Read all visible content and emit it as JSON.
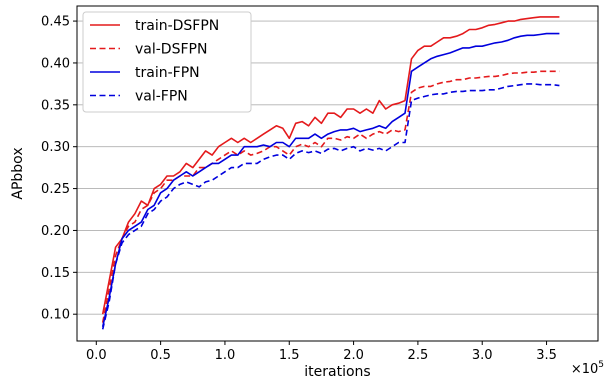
{
  "chart_data": {
    "type": "line",
    "xlabel": "iterations",
    "ylabel": "APbbox",
    "x_multiplier_label": "×10",
    "x_multiplier_exponent": "5",
    "xlim": [
      -0.15,
      3.9
    ],
    "ylim": [
      0.068,
      0.468
    ],
    "x_ticks": [
      0.0,
      0.5,
      1.0,
      1.5,
      2.0,
      2.5,
      3.0,
      3.5
    ],
    "x_tick_labels": [
      "0.0",
      "0.5",
      "1.0",
      "1.5",
      "2.0",
      "2.5",
      "3.0",
      "3.5"
    ],
    "y_ticks": [
      0.1,
      0.15,
      0.2,
      0.25,
      0.3,
      0.35,
      0.4,
      0.45
    ],
    "y_tick_labels": [
      "0.10",
      "0.15",
      "0.20",
      "0.25",
      "0.30",
      "0.35",
      "0.40",
      "0.45"
    ],
    "grid": "horizontal",
    "legend_position": "top-left",
    "series": [
      {
        "name": "train-DSFPN",
        "color": "#e41a1c",
        "dash": "solid",
        "points": [
          [
            0.05,
            0.1
          ],
          [
            0.1,
            0.14
          ],
          [
            0.15,
            0.18
          ],
          [
            0.2,
            0.19
          ],
          [
            0.25,
            0.21
          ],
          [
            0.3,
            0.22
          ],
          [
            0.35,
            0.235
          ],
          [
            0.4,
            0.23
          ],
          [
            0.45,
            0.25
          ],
          [
            0.5,
            0.255
          ],
          [
            0.55,
            0.265
          ],
          [
            0.6,
            0.265
          ],
          [
            0.65,
            0.27
          ],
          [
            0.7,
            0.28
          ],
          [
            0.75,
            0.275
          ],
          [
            0.8,
            0.285
          ],
          [
            0.85,
            0.295
          ],
          [
            0.9,
            0.29
          ],
          [
            0.95,
            0.3
          ],
          [
            1.0,
            0.305
          ],
          [
            1.05,
            0.31
          ],
          [
            1.1,
            0.305
          ],
          [
            1.15,
            0.31
          ],
          [
            1.2,
            0.305
          ],
          [
            1.25,
            0.31
          ],
          [
            1.3,
            0.315
          ],
          [
            1.35,
            0.32
          ],
          [
            1.4,
            0.325
          ],
          [
            1.45,
            0.322
          ],
          [
            1.5,
            0.31
          ],
          [
            1.55,
            0.328
          ],
          [
            1.6,
            0.33
          ],
          [
            1.65,
            0.325
          ],
          [
            1.7,
            0.335
          ],
          [
            1.75,
            0.328
          ],
          [
            1.8,
            0.34
          ],
          [
            1.85,
            0.34
          ],
          [
            1.9,
            0.335
          ],
          [
            1.95,
            0.345
          ],
          [
            2.0,
            0.345
          ],
          [
            2.05,
            0.34
          ],
          [
            2.1,
            0.345
          ],
          [
            2.15,
            0.34
          ],
          [
            2.2,
            0.355
          ],
          [
            2.25,
            0.345
          ],
          [
            2.3,
            0.35
          ],
          [
            2.35,
            0.352
          ],
          [
            2.4,
            0.355
          ],
          [
            2.45,
            0.405
          ],
          [
            2.5,
            0.415
          ],
          [
            2.55,
            0.42
          ],
          [
            2.6,
            0.42
          ],
          [
            2.65,
            0.425
          ],
          [
            2.7,
            0.43
          ],
          [
            2.75,
            0.43
          ],
          [
            2.8,
            0.432
          ],
          [
            2.85,
            0.435
          ],
          [
            2.9,
            0.44
          ],
          [
            2.95,
            0.44
          ],
          [
            3.0,
            0.442
          ],
          [
            3.05,
            0.445
          ],
          [
            3.1,
            0.446
          ],
          [
            3.15,
            0.448
          ],
          [
            3.2,
            0.45
          ],
          [
            3.25,
            0.45
          ],
          [
            3.3,
            0.452
          ],
          [
            3.35,
            0.453
          ],
          [
            3.4,
            0.454
          ],
          [
            3.45,
            0.455
          ],
          [
            3.5,
            0.455
          ],
          [
            3.55,
            0.455
          ],
          [
            3.6,
            0.455
          ]
        ]
      },
      {
        "name": "val-DSFPN",
        "color": "#e41a1c",
        "dash": "dashed",
        "points": [
          [
            0.05,
            0.09
          ],
          [
            0.1,
            0.13
          ],
          [
            0.15,
            0.17
          ],
          [
            0.2,
            0.19
          ],
          [
            0.25,
            0.205
          ],
          [
            0.3,
            0.21
          ],
          [
            0.35,
            0.225
          ],
          [
            0.4,
            0.23
          ],
          [
            0.45,
            0.245
          ],
          [
            0.5,
            0.25
          ],
          [
            0.55,
            0.26
          ],
          [
            0.6,
            0.26
          ],
          [
            0.65,
            0.265
          ],
          [
            0.7,
            0.265
          ],
          [
            0.75,
            0.265
          ],
          [
            0.8,
            0.275
          ],
          [
            0.85,
            0.275
          ],
          [
            0.9,
            0.28
          ],
          [
            0.95,
            0.285
          ],
          [
            1.0,
            0.29
          ],
          [
            1.05,
            0.295
          ],
          [
            1.1,
            0.29
          ],
          [
            1.15,
            0.295
          ],
          [
            1.2,
            0.29
          ],
          [
            1.25,
            0.292
          ],
          [
            1.3,
            0.295
          ],
          [
            1.35,
            0.3
          ],
          [
            1.4,
            0.3
          ],
          [
            1.45,
            0.295
          ],
          [
            1.5,
            0.29
          ],
          [
            1.55,
            0.3
          ],
          [
            1.6,
            0.303
          ],
          [
            1.65,
            0.3
          ],
          [
            1.7,
            0.305
          ],
          [
            1.75,
            0.3
          ],
          [
            1.8,
            0.31
          ],
          [
            1.85,
            0.31
          ],
          [
            1.9,
            0.308
          ],
          [
            1.95,
            0.312
          ],
          [
            2.0,
            0.31
          ],
          [
            2.05,
            0.315
          ],
          [
            2.1,
            0.31
          ],
          [
            2.15,
            0.315
          ],
          [
            2.2,
            0.318
          ],
          [
            2.25,
            0.315
          ],
          [
            2.3,
            0.32
          ],
          [
            2.35,
            0.318
          ],
          [
            2.4,
            0.32
          ],
          [
            2.45,
            0.365
          ],
          [
            2.5,
            0.37
          ],
          [
            2.55,
            0.372
          ],
          [
            2.6,
            0.372
          ],
          [
            2.65,
            0.375
          ],
          [
            2.7,
            0.377
          ],
          [
            2.75,
            0.378
          ],
          [
            2.8,
            0.38
          ],
          [
            2.85,
            0.38
          ],
          [
            2.9,
            0.382
          ],
          [
            2.95,
            0.382
          ],
          [
            3.0,
            0.383
          ],
          [
            3.05,
            0.384
          ],
          [
            3.1,
            0.384
          ],
          [
            3.15,
            0.385
          ],
          [
            3.2,
            0.387
          ],
          [
            3.25,
            0.388
          ],
          [
            3.3,
            0.388
          ],
          [
            3.35,
            0.389
          ],
          [
            3.4,
            0.389
          ],
          [
            3.45,
            0.39
          ],
          [
            3.5,
            0.39
          ],
          [
            3.55,
            0.39
          ],
          [
            3.6,
            0.39
          ]
        ]
      },
      {
        "name": "train-FPN",
        "color": "#0000dd",
        "dash": "solid",
        "points": [
          [
            0.05,
            0.085
          ],
          [
            0.1,
            0.12
          ],
          [
            0.15,
            0.16
          ],
          [
            0.2,
            0.19
          ],
          [
            0.25,
            0.2
          ],
          [
            0.3,
            0.205
          ],
          [
            0.35,
            0.21
          ],
          [
            0.4,
            0.225
          ],
          [
            0.45,
            0.23
          ],
          [
            0.5,
            0.245
          ],
          [
            0.55,
            0.25
          ],
          [
            0.6,
            0.26
          ],
          [
            0.65,
            0.265
          ],
          [
            0.7,
            0.27
          ],
          [
            0.75,
            0.265
          ],
          [
            0.8,
            0.27
          ],
          [
            0.85,
            0.275
          ],
          [
            0.9,
            0.28
          ],
          [
            0.95,
            0.28
          ],
          [
            1.0,
            0.285
          ],
          [
            1.05,
            0.29
          ],
          [
            1.1,
            0.29
          ],
          [
            1.15,
            0.3
          ],
          [
            1.2,
            0.3
          ],
          [
            1.25,
            0.3
          ],
          [
            1.3,
            0.302
          ],
          [
            1.35,
            0.3
          ],
          [
            1.4,
            0.305
          ],
          [
            1.45,
            0.305
          ],
          [
            1.5,
            0.3
          ],
          [
            1.55,
            0.31
          ],
          [
            1.6,
            0.31
          ],
          [
            1.65,
            0.31
          ],
          [
            1.7,
            0.315
          ],
          [
            1.75,
            0.31
          ],
          [
            1.8,
            0.315
          ],
          [
            1.85,
            0.318
          ],
          [
            1.9,
            0.32
          ],
          [
            1.95,
            0.32
          ],
          [
            2.0,
            0.322
          ],
          [
            2.05,
            0.318
          ],
          [
            2.1,
            0.32
          ],
          [
            2.15,
            0.322
          ],
          [
            2.2,
            0.325
          ],
          [
            2.25,
            0.322
          ],
          [
            2.3,
            0.33
          ],
          [
            2.35,
            0.335
          ],
          [
            2.4,
            0.34
          ],
          [
            2.45,
            0.39
          ],
          [
            2.5,
            0.395
          ],
          [
            2.55,
            0.4
          ],
          [
            2.6,
            0.405
          ],
          [
            2.65,
            0.408
          ],
          [
            2.7,
            0.41
          ],
          [
            2.75,
            0.412
          ],
          [
            2.8,
            0.415
          ],
          [
            2.85,
            0.418
          ],
          [
            2.9,
            0.418
          ],
          [
            2.95,
            0.42
          ],
          [
            3.0,
            0.42
          ],
          [
            3.05,
            0.422
          ],
          [
            3.1,
            0.424
          ],
          [
            3.15,
            0.425
          ],
          [
            3.2,
            0.427
          ],
          [
            3.25,
            0.43
          ],
          [
            3.3,
            0.432
          ],
          [
            3.35,
            0.433
          ],
          [
            3.4,
            0.433
          ],
          [
            3.45,
            0.434
          ],
          [
            3.5,
            0.435
          ],
          [
            3.55,
            0.435
          ],
          [
            3.6,
            0.435
          ]
        ]
      },
      {
        "name": "val-FPN",
        "color": "#0000dd",
        "dash": "dashed",
        "points": [
          [
            0.05,
            0.082
          ],
          [
            0.1,
            0.115
          ],
          [
            0.15,
            0.16
          ],
          [
            0.2,
            0.185
          ],
          [
            0.25,
            0.195
          ],
          [
            0.3,
            0.2
          ],
          [
            0.35,
            0.205
          ],
          [
            0.4,
            0.22
          ],
          [
            0.45,
            0.225
          ],
          [
            0.5,
            0.235
          ],
          [
            0.55,
            0.24
          ],
          [
            0.6,
            0.25
          ],
          [
            0.65,
            0.255
          ],
          [
            0.7,
            0.258
          ],
          [
            0.75,
            0.255
          ],
          [
            0.8,
            0.252
          ],
          [
            0.85,
            0.258
          ],
          [
            0.9,
            0.26
          ],
          [
            0.95,
            0.265
          ],
          [
            1.0,
            0.27
          ],
          [
            1.05,
            0.275
          ],
          [
            1.1,
            0.275
          ],
          [
            1.15,
            0.28
          ],
          [
            1.2,
            0.28
          ],
          [
            1.25,
            0.28
          ],
          [
            1.3,
            0.285
          ],
          [
            1.35,
            0.288
          ],
          [
            1.4,
            0.29
          ],
          [
            1.45,
            0.29
          ],
          [
            1.5,
            0.285
          ],
          [
            1.55,
            0.292
          ],
          [
            1.6,
            0.295
          ],
          [
            1.65,
            0.293
          ],
          [
            1.7,
            0.295
          ],
          [
            1.75,
            0.292
          ],
          [
            1.8,
            0.297
          ],
          [
            1.85,
            0.298
          ],
          [
            1.9,
            0.295
          ],
          [
            1.95,
            0.298
          ],
          [
            2.0,
            0.3
          ],
          [
            2.05,
            0.295
          ],
          [
            2.1,
            0.298
          ],
          [
            2.15,
            0.296
          ],
          [
            2.2,
            0.298
          ],
          [
            2.25,
            0.295
          ],
          [
            2.3,
            0.3
          ],
          [
            2.35,
            0.305
          ],
          [
            2.4,
            0.305
          ],
          [
            2.45,
            0.355
          ],
          [
            2.5,
            0.358
          ],
          [
            2.55,
            0.36
          ],
          [
            2.6,
            0.362
          ],
          [
            2.65,
            0.363
          ],
          [
            2.7,
            0.363
          ],
          [
            2.75,
            0.365
          ],
          [
            2.8,
            0.366
          ],
          [
            2.85,
            0.366
          ],
          [
            2.9,
            0.367
          ],
          [
            2.95,
            0.367
          ],
          [
            3.0,
            0.367
          ],
          [
            3.05,
            0.368
          ],
          [
            3.1,
            0.368
          ],
          [
            3.15,
            0.37
          ],
          [
            3.2,
            0.372
          ],
          [
            3.25,
            0.373
          ],
          [
            3.3,
            0.374
          ],
          [
            3.35,
            0.375
          ],
          [
            3.4,
            0.375
          ],
          [
            3.45,
            0.374
          ],
          [
            3.5,
            0.374
          ],
          [
            3.55,
            0.374
          ],
          [
            3.6,
            0.373
          ]
        ]
      }
    ]
  }
}
